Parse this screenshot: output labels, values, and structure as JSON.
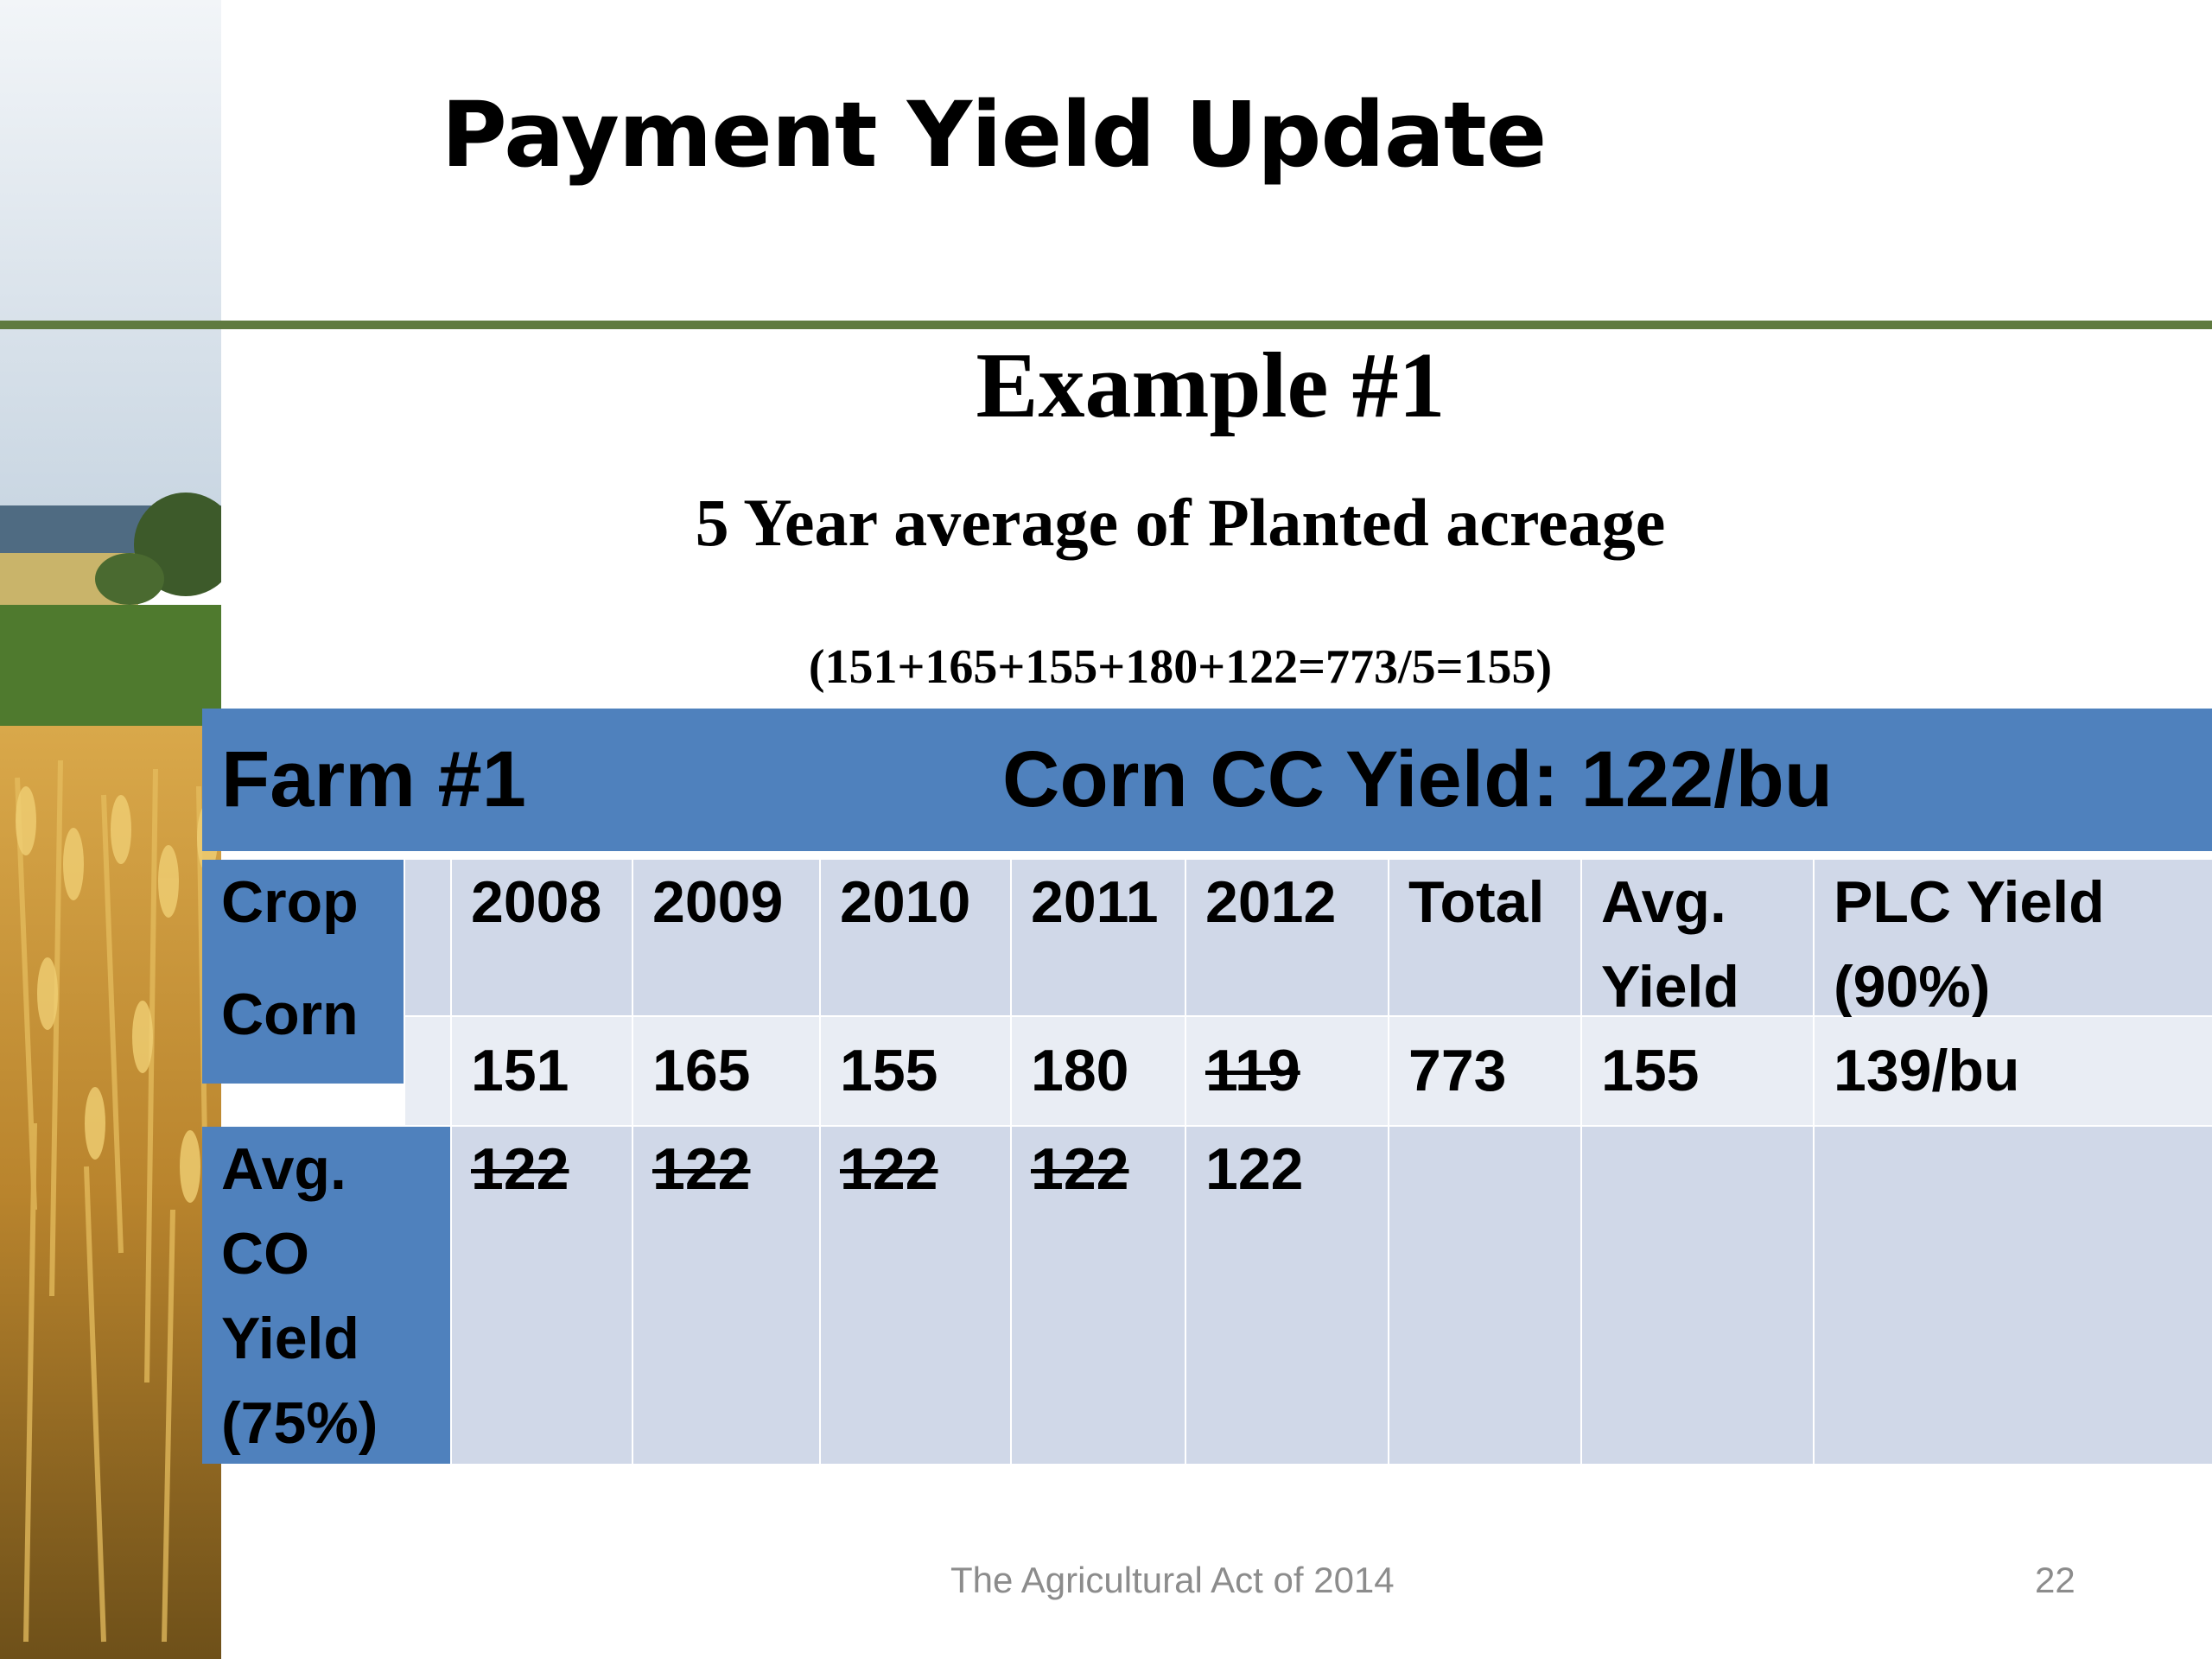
{
  "slide": {
    "title": "Payment Yield Update",
    "heading": "Example #1",
    "subheading": "5 Year average of Planted acreage",
    "formula": "(151+165+155+180+122=773/5=155)"
  },
  "table": {
    "farm_label": "Farm #1",
    "cc_yield_label": "Corn CC Yield:  122/bu",
    "crop_header": "Crop",
    "crop_name": "Corn",
    "columns": [
      "2008",
      "2009",
      "2010",
      "2011",
      "2012",
      "Total",
      "Avg.",
      "PLC Yield"
    ],
    "columns_line2": [
      "",
      "",
      "",
      "",
      "",
      "",
      "Yield",
      "(90%)"
    ],
    "corn_values": [
      "151",
      "165",
      "155",
      "180",
      "119",
      "773",
      "155",
      "139/bu"
    ],
    "avg_row_label": [
      "Avg.",
      "CO",
      "Yield",
      "(75%)"
    ],
    "avg_row_values": [
      "122",
      "122",
      "122",
      "122",
      "122"
    ]
  },
  "footer": {
    "text": "The Agricultural Act of 2014",
    "page": "22"
  },
  "colors": {
    "accent_blue": "#4f81bd",
    "rule_green": "#5f7a3f",
    "cell_light": "#d0d8e8",
    "cell_lighter": "#e9edf4"
  }
}
